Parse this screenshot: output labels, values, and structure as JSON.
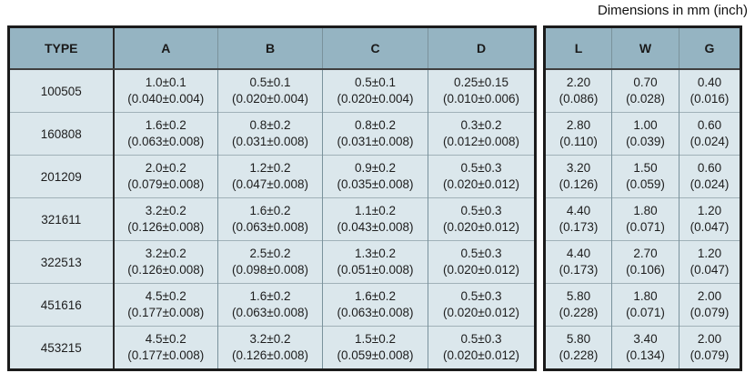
{
  "title": "Dimensions in mm (inch)",
  "headers": {
    "left": [
      "TYPE",
      "A",
      "B",
      "C",
      "D"
    ],
    "right": [
      "L",
      "W",
      "G"
    ]
  },
  "rows": [
    {
      "type": "100505",
      "A": {
        "mm": "1.0±0.1",
        "in": "(0.040±0.004)"
      },
      "B": {
        "mm": "0.5±0.1",
        "in": "(0.020±0.004)"
      },
      "C": {
        "mm": "0.5±0.1",
        "in": "(0.020±0.004)"
      },
      "D": {
        "mm": "0.25±0.15",
        "in": "(0.010±0.006)"
      },
      "L": {
        "mm": "2.20",
        "in": "(0.086)"
      },
      "W": {
        "mm": "0.70",
        "in": "(0.028)"
      },
      "G": {
        "mm": "0.40",
        "in": "(0.016)"
      }
    },
    {
      "type": "160808",
      "A": {
        "mm": "1.6±0.2",
        "in": "(0.063±0.008)"
      },
      "B": {
        "mm": "0.8±0.2",
        "in": "(0.031±0.008)"
      },
      "C": {
        "mm": "0.8±0.2",
        "in": "(0.031±0.008)"
      },
      "D": {
        "mm": "0.3±0.2",
        "in": "(0.012±0.008)"
      },
      "L": {
        "mm": "2.80",
        "in": "(0.110)"
      },
      "W": {
        "mm": "1.00",
        "in": "(0.039)"
      },
      "G": {
        "mm": "0.60",
        "in": "(0.024)"
      }
    },
    {
      "type": "201209",
      "A": {
        "mm": "2.0±0.2",
        "in": "(0.079±0.008)"
      },
      "B": {
        "mm": "1.2±0.2",
        "in": "(0.047±0.008)"
      },
      "C": {
        "mm": "0.9±0.2",
        "in": "(0.035±0.008)"
      },
      "D": {
        "mm": "0.5±0.3",
        "in": "(0.020±0.012)"
      },
      "L": {
        "mm": "3.20",
        "in": "(0.126)"
      },
      "W": {
        "mm": "1.50",
        "in": "(0.059)"
      },
      "G": {
        "mm": "0.60",
        "in": "(0.024)"
      }
    },
    {
      "type": "321611",
      "A": {
        "mm": "3.2±0.2",
        "in": "(0.126±0.008)"
      },
      "B": {
        "mm": "1.6±0.2",
        "in": "(0.063±0.008)"
      },
      "C": {
        "mm": "1.1±0.2",
        "in": "(0.043±0.008)"
      },
      "D": {
        "mm": "0.5±0.3",
        "in": "(0.020±0.012)"
      },
      "L": {
        "mm": "4.40",
        "in": "(0.173)"
      },
      "W": {
        "mm": "1.80",
        "in": "(0.071)"
      },
      "G": {
        "mm": "1.20",
        "in": "(0.047)"
      }
    },
    {
      "type": "322513",
      "A": {
        "mm": "3.2±0.2",
        "in": "(0.126±0.008)"
      },
      "B": {
        "mm": "2.5±0.2",
        "in": "(0.098±0.008)"
      },
      "C": {
        "mm": "1.3±0.2",
        "in": "(0.051±0.008)"
      },
      "D": {
        "mm": "0.5±0.3",
        "in": "(0.020±0.012)"
      },
      "L": {
        "mm": "4.40",
        "in": "(0.173)"
      },
      "W": {
        "mm": "2.70",
        "in": "(0.106)"
      },
      "G": {
        "mm": "1.20",
        "in": "(0.047)"
      }
    },
    {
      "type": "451616",
      "A": {
        "mm": "4.5±0.2",
        "in": "(0.177±0.008)"
      },
      "B": {
        "mm": "1.6±0.2",
        "in": "(0.063±0.008)"
      },
      "C": {
        "mm": "1.6±0.2",
        "in": "(0.063±0.008)"
      },
      "D": {
        "mm": "0.5±0.3",
        "in": "(0.020±0.012)"
      },
      "L": {
        "mm": "5.80",
        "in": "(0.228)"
      },
      "W": {
        "mm": "1.80",
        "in": "(0.071)"
      },
      "G": {
        "mm": "2.00",
        "in": "(0.079)"
      }
    },
    {
      "type": "453215",
      "A": {
        "mm": "4.5±0.2",
        "in": "(0.177±0.008)"
      },
      "B": {
        "mm": "3.2±0.2",
        "in": "(0.126±0.008)"
      },
      "C": {
        "mm": "1.5±0.2",
        "in": "(0.059±0.008)"
      },
      "D": {
        "mm": "0.5±0.3",
        "in": "(0.020±0.012)"
      },
      "L": {
        "mm": "5.80",
        "in": "(0.228)"
      },
      "W": {
        "mm": "3.40",
        "in": "(0.134)"
      },
      "G": {
        "mm": "2.00",
        "in": "(0.079)"
      }
    }
  ],
  "colors": {
    "header_bg": "#95b4c2",
    "cell_bg": "#dbe7ec",
    "outer_border": "#1b1b1b",
    "inner_line": "#7a929c",
    "row_line": "#a0b1b8"
  }
}
